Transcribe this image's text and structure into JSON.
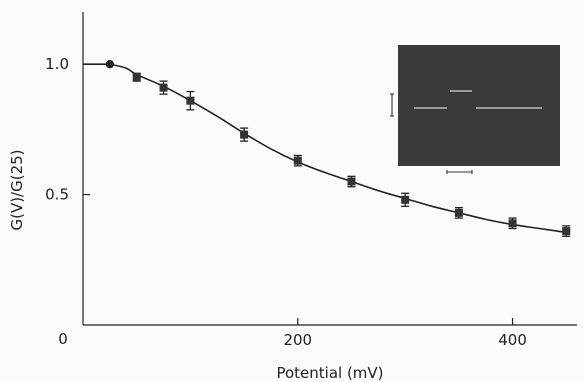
{
  "chart_data": {
    "type": "line",
    "xlabel": "Potential (mV)",
    "ylabel": "G(V)/G(25)",
    "xlim": [
      0,
      460
    ],
    "ylim": [
      0,
      1.2
    ],
    "x_ticks": [
      200,
      400
    ],
    "x_tick_labels": [
      "200",
      "400"
    ],
    "y_ticks": [
      0.5,
      1.0
    ],
    "y_tick_labels": [
      "0.5",
      "1.0"
    ],
    "origin_label": "0",
    "grid": false,
    "series": [
      {
        "points": [
          {
            "x": 25,
            "y": 1.0,
            "err": 0,
            "marker": "circle"
          },
          {
            "x": 50,
            "y": 0.95,
            "err": 0.015,
            "marker": "square"
          },
          {
            "x": 75,
            "y": 0.91,
            "err": 0.025,
            "marker": "square"
          },
          {
            "x": 100,
            "y": 0.86,
            "err": 0.035,
            "marker": "square"
          },
          {
            "x": 150,
            "y": 0.73,
            "err": 0.025,
            "marker": "square"
          },
          {
            "x": 200,
            "y": 0.63,
            "err": 0.02,
            "marker": "square"
          },
          {
            "x": 250,
            "y": 0.55,
            "err": 0.02,
            "marker": "square"
          },
          {
            "x": 300,
            "y": 0.48,
            "err": 0.025,
            "marker": "square"
          },
          {
            "x": 350,
            "y": 0.43,
            "err": 0.02,
            "marker": "square"
          },
          {
            "x": 400,
            "y": 0.39,
            "err": 0.02,
            "marker": "square"
          },
          {
            "x": 450,
            "y": 0.36,
            "err": 0.02,
            "marker": "square"
          }
        ],
        "fit_curve": [
          [
            25,
            1.0
          ],
          [
            40,
            0.985
          ],
          [
            50,
            0.96
          ],
          [
            75,
            0.915
          ],
          [
            100,
            0.86
          ],
          [
            125,
            0.8
          ],
          [
            150,
            0.735
          ],
          [
            175,
            0.675
          ],
          [
            200,
            0.625
          ],
          [
            225,
            0.585
          ],
          [
            250,
            0.55
          ],
          [
            275,
            0.515
          ],
          [
            300,
            0.485
          ],
          [
            325,
            0.455
          ],
          [
            350,
            0.43
          ],
          [
            375,
            0.405
          ],
          [
            400,
            0.385
          ],
          [
            425,
            0.37
          ],
          [
            450,
            0.355
          ]
        ]
      }
    ],
    "inset": {
      "background": "#3a3a3a",
      "trace_color": "#d8d8d8"
    }
  }
}
